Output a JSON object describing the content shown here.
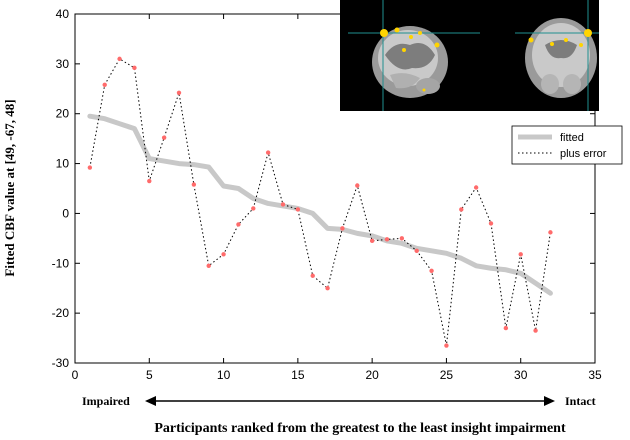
{
  "chart_data": {
    "type": "line",
    "xlabel": "Participants ranked from the greatest to the least insight impairment",
    "ylabel": "Fitted CBF value at [49, -67, 48]",
    "xlim": [
      0,
      35
    ],
    "ylim": [
      -30,
      40
    ],
    "xticks": [
      0,
      5,
      10,
      15,
      20,
      25,
      30,
      35
    ],
    "yticks": [
      -30,
      -20,
      -10,
      0,
      10,
      20,
      30,
      40
    ],
    "grid": false,
    "legend_position": "top-right",
    "x": [
      1,
      2,
      3,
      4,
      5,
      6,
      7,
      8,
      9,
      10,
      11,
      12,
      13,
      14,
      15,
      16,
      17,
      18,
      19,
      20,
      21,
      22,
      23,
      24,
      25,
      26,
      27,
      28,
      29,
      30,
      31,
      32
    ],
    "series": [
      {
        "name": "fitted",
        "style": "thick-solid",
        "color": "#c8c8c8",
        "values": [
          19.5,
          19,
          18,
          17,
          11,
          10.5,
          10,
          9.8,
          9.3,
          5.5,
          5,
          3,
          2,
          1.5,
          1,
          0,
          -3,
          -3.2,
          -4,
          -4.5,
          -5.5,
          -6,
          -7,
          -7.5,
          -8,
          -9,
          -10.5,
          -11,
          -11.3,
          -12,
          -14,
          -16
        ]
      },
      {
        "name": "plus error",
        "style": "dotted",
        "color": "#000000",
        "marker_color": "#ff6b6b",
        "values": [
          9.2,
          25.8,
          31,
          29.2,
          6.5,
          15.2,
          24.2,
          5.8,
          -10.5,
          -8.2,
          -2.2,
          1,
          12.2,
          1.8,
          0.8,
          -12.5,
          -15,
          -3,
          5.6,
          -5.5,
          -5.2,
          -5,
          -7.5,
          -11.5,
          -26.5,
          0.8,
          5.2,
          -2,
          -23,
          -8.2,
          -23.5,
          -3.8
        ]
      }
    ],
    "annotations": {
      "left_label": "Impaired",
      "right_label": "Intact"
    },
    "inset": {
      "description": "brain-scan-thumbnails"
    }
  }
}
